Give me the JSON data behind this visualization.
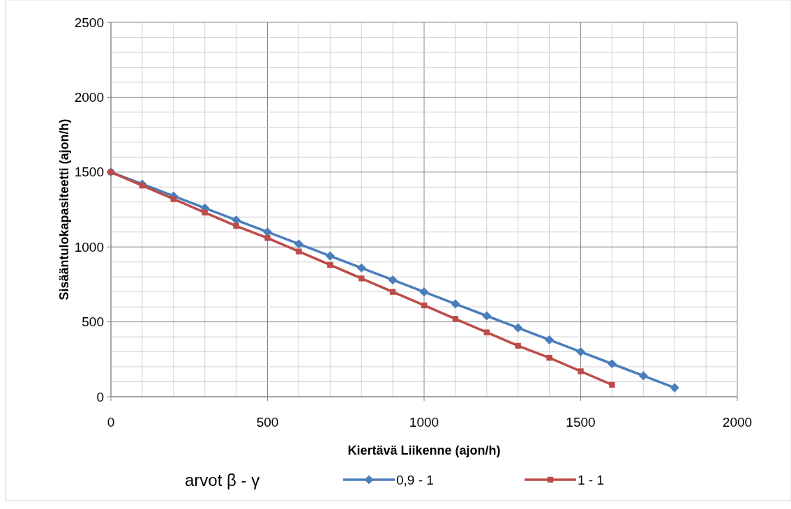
{
  "chart_data": {
    "type": "line",
    "xlabel": "Kiertävä Liikenne (ajon/h)",
    "ylabel": "Sisääntulokapasiteetti (ajon/h)",
    "legend_title": "arvot β - γ",
    "legend": "bottom",
    "grid": true,
    "line_style": "solid",
    "xlim": [
      0,
      2000
    ],
    "ylim": [
      0,
      2500
    ],
    "xticks": [
      0,
      {
        "value": 100,
        "label": null
      },
      {
        "value": 200,
        "label": null
      },
      {
        "value": 300,
        "label": null
      },
      {
        "value": 400,
        "label": null
      },
      500,
      {
        "value": 600,
        "label": null
      },
      {
        "value": 700,
        "label": null
      },
      {
        "value": 800,
        "label": null
      },
      {
        "value": 900,
        "label": null
      },
      1000,
      {
        "value": 1100,
        "label": null
      },
      {
        "value": 1200,
        "label": null
      },
      {
        "value": 1300,
        "label": null
      },
      {
        "value": 1400,
        "label": null
      },
      1500,
      {
        "value": 1600,
        "label": null
      },
      {
        "value": 1700,
        "label": null
      },
      {
        "value": 1800,
        "label": null
      },
      {
        "value": 1900,
        "label": null
      },
      2000
    ],
    "yticks": [
      0,
      {
        "value": 100,
        "label": null
      },
      {
        "value": 200,
        "label": null
      },
      {
        "value": 300,
        "label": null
      },
      {
        "value": 400,
        "label": null
      },
      500,
      {
        "value": 600,
        "label": null
      },
      {
        "value": 700,
        "label": null
      },
      {
        "value": 800,
        "label": null
      },
      {
        "value": 900,
        "label": null
      },
      1000,
      {
        "value": 1100,
        "label": null
      },
      {
        "value": 1200,
        "label": null
      },
      {
        "value": 1300,
        "label": null
      },
      {
        "value": 1400,
        "label": null
      },
      1500,
      {
        "value": 1600,
        "label": null
      },
      {
        "value": 1700,
        "label": null
      },
      {
        "value": 1800,
        "label": null
      },
      {
        "value": 1900,
        "label": null
      },
      2000,
      {
        "value": 2100,
        "label": null
      },
      {
        "value": 2200,
        "label": null
      },
      {
        "value": 2300,
        "label": null
      },
      {
        "value": 2400,
        "label": null
      },
      2500
    ],
    "series": [
      {
        "name": "0,9 - 1",
        "color": "#4a7ebb",
        "marker": "diamond",
        "x": [
          0,
          100,
          200,
          300,
          400,
          500,
          600,
          700,
          800,
          900,
          1000,
          1100,
          1200,
          1300,
          1400,
          1500,
          1600,
          1700,
          1800
        ],
        "values": [
          1500,
          1420,
          1340,
          1260,
          1180,
          1100,
          1020,
          940,
          860,
          780,
          700,
          620,
          540,
          460,
          380,
          300,
          220,
          140,
          60
        ]
      },
      {
        "name": "1 - 1",
        "color": "#be4b48",
        "marker": "square",
        "x": [
          0,
          100,
          200,
          300,
          400,
          500,
          600,
          700,
          800,
          900,
          1000,
          1100,
          1200,
          1300,
          1400,
          1500,
          1600
        ],
        "values": [
          1500,
          1410,
          1320,
          1230,
          1140,
          1060,
          970,
          880,
          790,
          700,
          610,
          520,
          430,
          340,
          260,
          170,
          80
        ]
      }
    ]
  }
}
